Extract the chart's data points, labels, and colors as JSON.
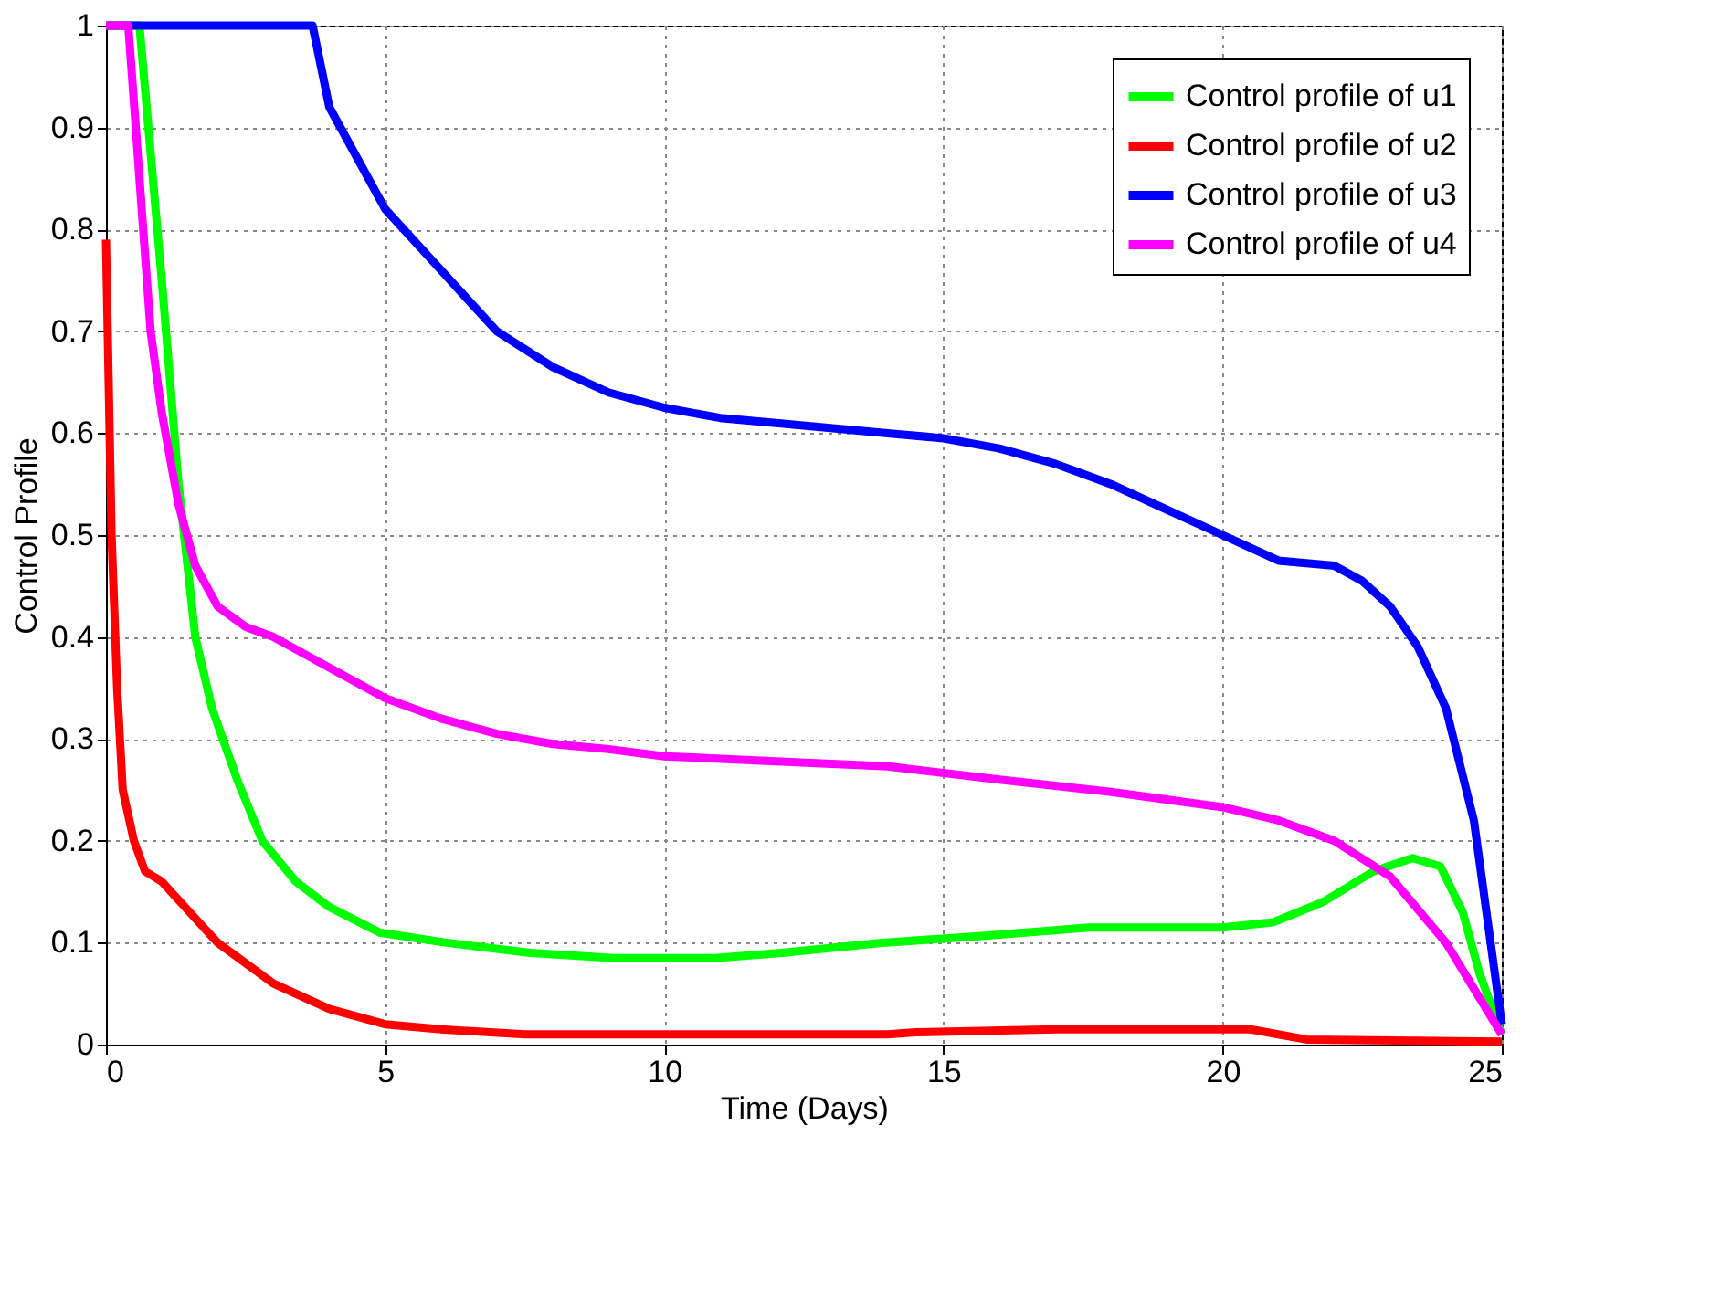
{
  "chart_data": {
    "type": "line",
    "xlabel": "Time (Days)",
    "ylabel": "Control Profile",
    "xlim": [
      0,
      25
    ],
    "xticks": [
      0,
      5,
      10,
      15,
      20,
      25
    ],
    "ylim": [
      0,
      1
    ],
    "yticks": [
      0,
      0.1,
      0.2,
      0.3,
      0.4,
      0.5,
      0.6,
      0.7,
      0.8,
      0.9,
      1
    ],
    "grid": true,
    "legend": "top right",
    "line_style": "solid",
    "marker": "none",
    "series": [
      {
        "name": "Control profile of u1",
        "color": "#00ff00",
        "x": [
          0,
          0.6,
          1,
          1.3,
          1.6,
          1.9,
          2.35,
          2.8,
          3.4,
          4,
          4.9,
          6.1,
          7.6,
          9.1,
          10.9,
          12.1,
          13.9,
          15.8,
          17.6,
          20,
          20.9,
          21.8,
          22.7,
          23.4,
          23.9,
          24.3,
          24.6,
          25
        ],
        "values": [
          1,
          1,
          0.75,
          0.55,
          0.4,
          0.33,
          0.26,
          0.2,
          0.16,
          0.135,
          0.11,
          0.1,
          0.09,
          0.085,
          0.085,
          0.09,
          0.1,
          0.107,
          0.115,
          0.115,
          0.12,
          0.14,
          0.17,
          0.183,
          0.175,
          0.13,
          0.07,
          0.01
        ]
      },
      {
        "name": "Control profile of u2",
        "color": "#ff0000",
        "x": [
          0,
          0.1,
          0.2,
          0.3,
          0.5,
          0.7,
          1,
          1.5,
          2,
          3,
          4,
          5,
          6,
          7.5,
          14,
          14.5,
          17,
          20.5,
          21.5,
          25
        ],
        "values": [
          0.79,
          0.5,
          0.35,
          0.25,
          0.2,
          0.17,
          0.16,
          0.13,
          0.1,
          0.06,
          0.035,
          0.02,
          0.015,
          0.01,
          0.01,
          0.012,
          0.015,
          0.015,
          0.005,
          0.003
        ]
      },
      {
        "name": "Control profile of u3",
        "color": "#0000ff",
        "x": [
          0,
          3.7,
          4,
          4.5,
          5,
          6,
          7,
          8,
          9,
          10,
          11,
          12,
          14,
          15,
          16,
          17,
          18,
          19,
          20,
          21,
          22,
          22.5,
          23,
          23.5,
          24,
          24.5,
          25
        ],
        "values": [
          1,
          1,
          0.92,
          0.87,
          0.82,
          0.76,
          0.7,
          0.665,
          0.64,
          0.625,
          0.615,
          0.61,
          0.6,
          0.595,
          0.585,
          0.57,
          0.55,
          0.525,
          0.5,
          0.475,
          0.47,
          0.455,
          0.43,
          0.39,
          0.33,
          0.22,
          0.02
        ]
      },
      {
        "name": "Control profile of u4",
        "color": "#ff00ff",
        "x": [
          0,
          0.4,
          0.6,
          0.8,
          1,
          1.3,
          1.6,
          2,
          2.5,
          3,
          4,
          5,
          6,
          7,
          8,
          9,
          10,
          12,
          14,
          16,
          18,
          20,
          21,
          22,
          23,
          24,
          25
        ],
        "values": [
          1,
          1,
          0.85,
          0.7,
          0.62,
          0.53,
          0.47,
          0.43,
          0.41,
          0.4,
          0.37,
          0.34,
          0.32,
          0.305,
          0.295,
          0.29,
          0.283,
          0.278,
          0.273,
          0.26,
          0.248,
          0.233,
          0.22,
          0.2,
          0.165,
          0.1,
          0.01
        ]
      }
    ]
  }
}
